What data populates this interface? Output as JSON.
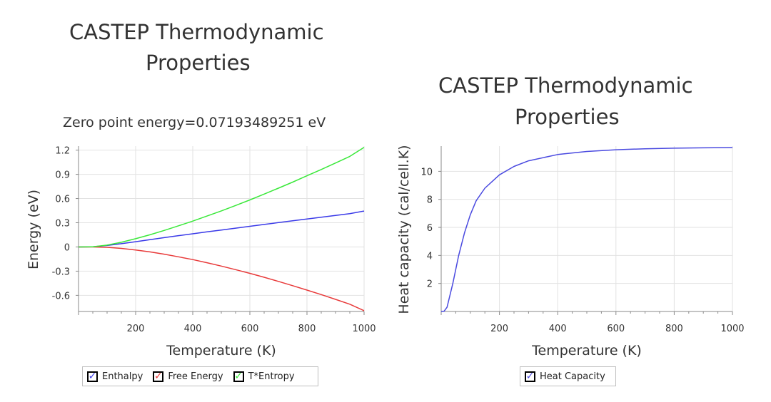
{
  "colors": {
    "enthalpy": "#3a3ae8",
    "free_energy": "#e83a3a",
    "t_entropy": "#3ae83a",
    "heat_capacity": "#4a4ae0",
    "grid": "#e2e2e2",
    "axis": "#8a8a8a"
  },
  "left": {
    "title_line1": "CASTEP Thermodynamic",
    "title_line2": "Properties",
    "subtitle": "Zero point energy=0.07193489251 eV",
    "legend": [
      "Enthalpy",
      "Free Energy",
      "T*Entropy"
    ]
  },
  "right": {
    "title_line1": "CASTEP Thermodynamic",
    "title_line2": "Properties",
    "legend": [
      "Heat Capacity"
    ]
  },
  "chart_data": [
    {
      "type": "line",
      "title": "CASTEP Thermodynamic Properties",
      "subtitle": "Zero point energy=0.07193489251 eV",
      "xlabel": "Temperature (K)",
      "ylabel": "Energy  (eV)",
      "xlim": [
        0,
        1000
      ],
      "ylim": [
        -0.8,
        1.25
      ],
      "xticks": [
        200,
        400,
        600,
        800,
        1000
      ],
      "yticks": [
        -0.6,
        -0.3,
        0,
        0.3,
        0.6,
        0.9,
        1.2
      ],
      "ytick_labels": [
        "-0.6",
        "-0.3",
        "0",
        "0.3",
        "0.6",
        "0.9",
        "1.2"
      ],
      "grid": true,
      "legend_position": "bottom",
      "x": [
        0,
        50,
        100,
        150,
        200,
        250,
        300,
        350,
        400,
        450,
        500,
        550,
        600,
        650,
        700,
        750,
        800,
        850,
        900,
        950,
        1000
      ],
      "series": [
        {
          "name": "Enthalpy",
          "values": [
            0,
            0.002,
            0.018,
            0.04,
            0.065,
            0.09,
            0.115,
            0.14,
            0.163,
            0.187,
            0.21,
            0.233,
            0.256,
            0.279,
            0.302,
            0.324,
            0.347,
            0.369,
            0.391,
            0.413,
            0.445
          ]
        },
        {
          "name": "Free Energy",
          "values": [
            0,
            -0.0005,
            -0.005,
            -0.018,
            -0.037,
            -0.061,
            -0.09,
            -0.122,
            -0.157,
            -0.196,
            -0.237,
            -0.281,
            -0.327,
            -0.376,
            -0.427,
            -0.48,
            -0.535,
            -0.591,
            -0.65,
            -0.71,
            -0.79
          ]
        },
        {
          "name": "T*Entropy",
          "values": [
            0,
            0.002,
            0.023,
            0.058,
            0.102,
            0.151,
            0.205,
            0.262,
            0.32,
            0.383,
            0.447,
            0.514,
            0.583,
            0.655,
            0.729,
            0.804,
            0.882,
            0.96,
            1.041,
            1.123,
            1.235
          ]
        }
      ]
    },
    {
      "type": "line",
      "title": "CASTEP Thermodynamic Properties",
      "xlabel": "Temperature (K)",
      "ylabel": "Heat capacity (cal/cell.K)",
      "xlim": [
        0,
        1000
      ],
      "ylim": [
        0,
        11.8
      ],
      "xticks": [
        200,
        400,
        600,
        800,
        1000
      ],
      "yticks": [
        2,
        4,
        6,
        8,
        10
      ],
      "ytick_labels": [
        "2",
        "4",
        "6",
        "8",
        "10"
      ],
      "grid": true,
      "legend_position": "bottom",
      "x": [
        0,
        10,
        20,
        40,
        60,
        80,
        100,
        120,
        150,
        200,
        250,
        300,
        400,
        500,
        600,
        700,
        800,
        900,
        1000
      ],
      "series": [
        {
          "name": "Heat Capacity",
          "values": [
            0,
            0.02,
            0.3,
            2.0,
            4.0,
            5.6,
            6.9,
            7.9,
            8.8,
            9.75,
            10.35,
            10.75,
            11.2,
            11.42,
            11.54,
            11.61,
            11.65,
            11.68,
            11.7
          ]
        }
      ]
    }
  ]
}
